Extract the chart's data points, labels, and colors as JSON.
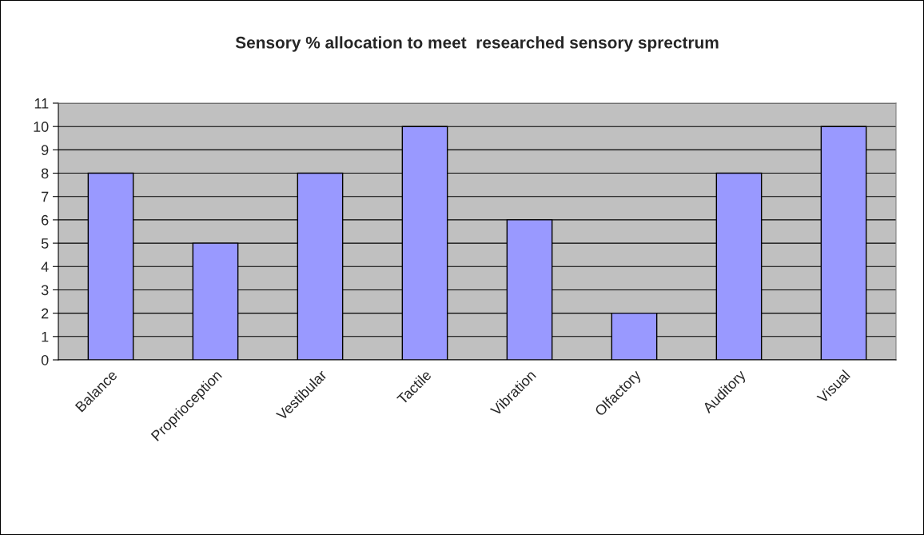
{
  "chart_data": {
    "type": "bar",
    "title": "Sensory % allocation to meet  researched sensory sprectrum",
    "categories": [
      "Balance",
      "Proprioception",
      "Vestibular",
      "Tactile",
      "Vibration",
      "Olfactory",
      "Auditory",
      "Visual"
    ],
    "values": [
      8,
      5,
      8,
      10,
      6,
      2,
      8,
      10
    ],
    "color": "#9999ff",
    "ylim": [
      0,
      11
    ],
    "yticks": [
      0,
      1,
      2,
      3,
      4,
      5,
      6,
      7,
      8,
      9,
      10,
      11
    ],
    "grid": "y",
    "legend": false
  }
}
